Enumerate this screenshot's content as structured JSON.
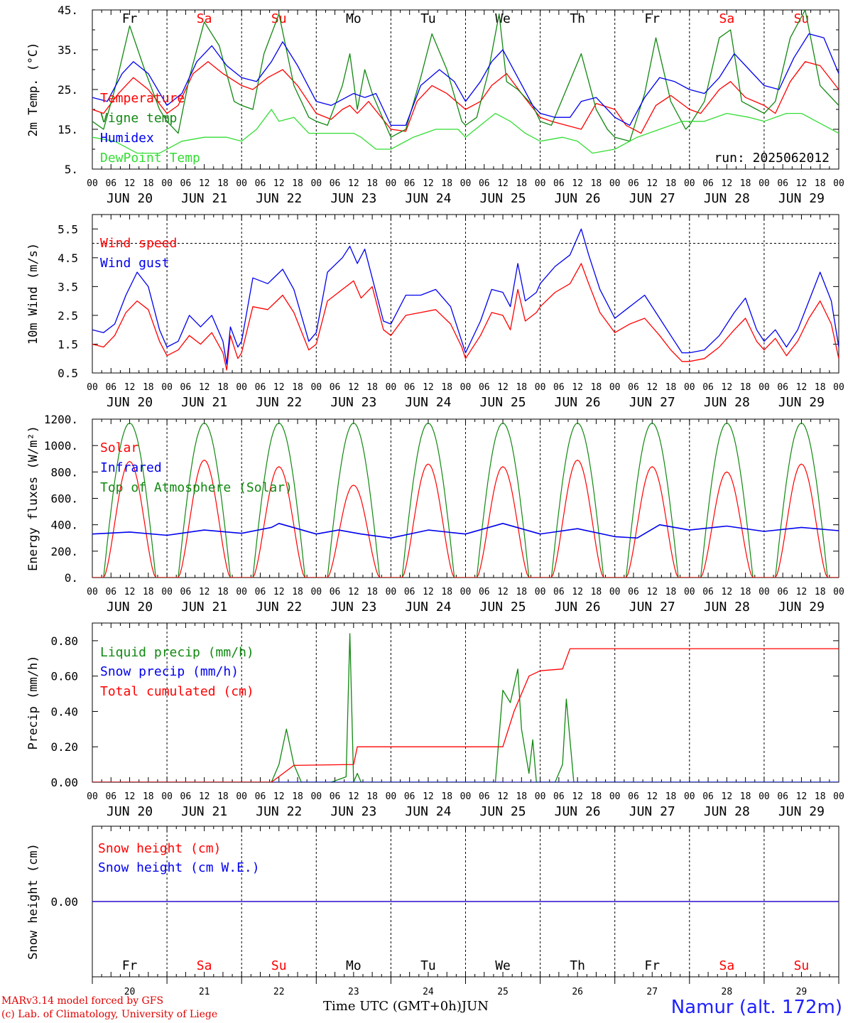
{
  "colors": {
    "red": "#ff0000",
    "green": "#118811",
    "blue": "#0000ee",
    "lightgreen": "#33dd33"
  },
  "hours": [
    "00",
    "06",
    "12",
    "18"
  ],
  "dates": [
    "JUN 20",
    "JUN 21",
    "JUN 22",
    "JUN 23",
    "JUN 24",
    "JUN 25",
    "JUN 26",
    "JUN 27",
    "JUN 28",
    "JUN 29"
  ],
  "weekdays": [
    {
      "label": "Fr",
      "color": "#000000"
    },
    {
      "label": "Sa",
      "color": "#ff0000"
    },
    {
      "label": "Su",
      "color": "#ff0000"
    },
    {
      "label": "Mo",
      "color": "#000000"
    },
    {
      "label": "Tu",
      "color": "#000000"
    },
    {
      "label": "We",
      "color": "#000000"
    },
    {
      "label": "Th",
      "color": "#000000"
    },
    {
      "label": "Fr",
      "color": "#000000"
    },
    {
      "label": "Sa",
      "color": "#ff0000"
    },
    {
      "label": "Su",
      "color": "#ff0000"
    }
  ],
  "bottom_days": [
    "20",
    "21",
    "22",
    "23",
    "24",
    "25",
    "26",
    "27",
    "28",
    "29"
  ],
  "footer": {
    "model": "MARv3.14 model forced by GFS",
    "copyright": "(c) Lab. of Climatology, University of Liege",
    "time_label": "Time UTC (GMT+0h)",
    "month": "JUN",
    "location": "Namur (alt. 172m)"
  },
  "chart_data": [
    {
      "type": "line",
      "ylabel": "2m Temp. (°C)",
      "ylim": [
        5,
        45
      ],
      "yticks": [
        5,
        15,
        25,
        35,
        45
      ],
      "ytick_labels": [
        "5.",
        "15.",
        "25.",
        "35.",
        "45."
      ],
      "run_label": "run: 2025062012",
      "x_unit": "days since JUN 20 00 UTC",
      "series": [
        {
          "name": "Temperature",
          "color": "#ff0000",
          "x": [
            0,
            0.15,
            0.35,
            0.55,
            0.75,
            1.0,
            1.15,
            1.35,
            1.55,
            1.75,
            2.0,
            2.15,
            2.35,
            2.55,
            2.75,
            3.0,
            3.2,
            3.35,
            3.45,
            3.55,
            3.7,
            4.0,
            4.2,
            4.35,
            4.55,
            4.75,
            5.0,
            5.2,
            5.35,
            5.55,
            5.75,
            6.0,
            6.15,
            6.35,
            6.55,
            6.75,
            7.0,
            7.15,
            7.35,
            7.55,
            7.75,
            8.0,
            8.15,
            8.4,
            8.55,
            8.75,
            9.0,
            9.15,
            9.35,
            9.55,
            9.75,
            10.0
          ],
          "values": [
            20,
            19,
            24,
            28,
            25,
            19,
            21,
            29,
            32,
            29,
            26,
            25,
            28,
            30,
            26,
            19,
            17.5,
            20,
            21,
            19,
            22,
            15,
            14.5,
            22,
            26,
            24,
            20,
            22,
            26,
            29,
            24,
            18,
            17,
            16,
            15,
            21.5,
            20,
            16,
            14,
            21,
            23.5,
            20,
            19,
            25,
            27,
            23,
            21,
            19,
            27,
            32,
            31,
            25
          ]
        },
        {
          "name": "Vigne temp",
          "color": "#118811",
          "x": [
            0,
            0.15,
            0.3,
            0.5,
            0.7,
            0.9,
            1.0,
            1.15,
            1.3,
            1.5,
            1.7,
            1.9,
            2.0,
            2.15,
            2.3,
            2.5,
            2.7,
            2.9,
            3.0,
            3.15,
            3.35,
            3.45,
            3.55,
            3.65,
            3.75,
            4.0,
            4.2,
            4.4,
            4.55,
            4.75,
            4.95,
            5.0,
            5.15,
            5.3,
            5.45,
            5.55,
            5.7,
            5.9,
            6.0,
            6.15,
            6.35,
            6.55,
            6.75,
            6.9,
            7.0,
            7.2,
            7.4,
            7.55,
            7.75,
            7.95,
            8.0,
            8.2,
            8.4,
            8.55,
            8.7,
            8.9,
            9.0,
            9.15,
            9.35,
            9.55,
            9.75,
            10.0
          ],
          "values": [
            17,
            15,
            25,
            41,
            30,
            20,
            17,
            14,
            28,
            42,
            36,
            22,
            21,
            20,
            34,
            44,
            26,
            18,
            17,
            16,
            26,
            34,
            20,
            30,
            24,
            13,
            15,
            28,
            39,
            30,
            17,
            16,
            18,
            29,
            44,
            27,
            25,
            21,
            17,
            16,
            25,
            34,
            20,
            15,
            13,
            12,
            24,
            38,
            22,
            15,
            16,
            22,
            38,
            40,
            22,
            20,
            19,
            22,
            38,
            45,
            26,
            21
          ]
        },
        {
          "name": "Humidex",
          "color": "#0000ee",
          "x": [
            0,
            0.2,
            0.4,
            0.55,
            0.75,
            1.0,
            1.2,
            1.4,
            1.6,
            1.8,
            2.0,
            2.2,
            2.4,
            2.55,
            2.75,
            3.0,
            3.2,
            3.4,
            3.5,
            3.65,
            3.8,
            4.0,
            4.2,
            4.4,
            4.65,
            4.85,
            5.0,
            5.2,
            5.35,
            5.5,
            5.7,
            5.9,
            6.0,
            6.2,
            6.4,
            6.55,
            6.75,
            7.0,
            7.2,
            7.4,
            7.6,
            7.8,
            8.0,
            8.2,
            8.4,
            8.6,
            8.8,
            9.0,
            9.2,
            9.4,
            9.6,
            9.8,
            10.0
          ],
          "values": [
            23,
            22,
            29,
            32,
            29,
            21,
            24,
            32,
            36,
            31,
            28,
            27,
            32,
            37,
            31,
            22,
            21,
            23,
            24,
            23,
            24,
            16,
            16,
            26,
            30,
            27,
            22,
            27,
            32,
            35,
            28,
            21,
            19,
            18,
            18,
            22,
            23,
            18,
            16,
            23,
            28,
            27,
            25,
            24,
            28,
            34,
            30,
            26,
            25,
            33,
            39,
            38,
            29
          ]
        },
        {
          "name": "DewPoint Temp",
          "color": "#33dd33",
          "x": [
            0,
            0.3,
            0.6,
            0.9,
            1.2,
            1.5,
            1.8,
            2.0,
            2.2,
            2.4,
            2.5,
            2.7,
            2.9,
            3.0,
            3.3,
            3.5,
            3.6,
            3.8,
            4.0,
            4.3,
            4.6,
            4.9,
            5.0,
            5.2,
            5.4,
            5.6,
            5.8,
            6.0,
            6.3,
            6.5,
            6.7,
            7.0,
            7.3,
            7.6,
            7.9,
            8.2,
            8.5,
            8.8,
            9.0,
            9.3,
            9.5,
            9.7,
            10.0
          ],
          "values": [
            13,
            12,
            9,
            9,
            12,
            13,
            13,
            12,
            15,
            20,
            17,
            18,
            14,
            14,
            14,
            14,
            13,
            10,
            10,
            13,
            15,
            15,
            13,
            16,
            19,
            17,
            14,
            12,
            13,
            12,
            9,
            10,
            13,
            15,
            17,
            17,
            19,
            18,
            17,
            19,
            19,
            17,
            14
          ]
        }
      ]
    },
    {
      "type": "line",
      "ylabel": "10m Wind (m/s)",
      "ylim": [
        0.5,
        6.0
      ],
      "yticks": [
        0.5,
        1.5,
        2.5,
        3.5,
        4.5,
        5.5
      ],
      "ytick_labels": [
        "0.5",
        "1.5",
        "2.5",
        "3.5",
        "4.5",
        "5.5"
      ],
      "reference_line": 5.0,
      "x_unit": "days since JUN 20 00 UTC",
      "series": [
        {
          "name": "Wind speed",
          "color": "#ff0000",
          "x": [
            0,
            0.15,
            0.3,
            0.45,
            0.6,
            0.75,
            0.9,
            1.0,
            1.15,
            1.3,
            1.45,
            1.6,
            1.75,
            1.8,
            1.85,
            1.95,
            2.0,
            2.15,
            2.35,
            2.55,
            2.7,
            2.9,
            3.0,
            3.15,
            3.35,
            3.5,
            3.6,
            3.75,
            3.9,
            4.0,
            4.2,
            4.4,
            4.6,
            4.8,
            4.95,
            5.0,
            5.2,
            5.35,
            5.5,
            5.6,
            5.7,
            5.8,
            5.95,
            6.0,
            6.2,
            6.4,
            6.55,
            6.65,
            6.8,
            7.0,
            7.2,
            7.4,
            7.6,
            7.75,
            7.9,
            8.0,
            8.2,
            8.4,
            8.6,
            8.75,
            8.9,
            9.0,
            9.15,
            9.3,
            9.45,
            9.6,
            9.75,
            9.9,
            10.0
          ],
          "values": [
            1.5,
            1.4,
            1.8,
            2.6,
            3.0,
            2.7,
            1.6,
            1.1,
            1.3,
            1.8,
            1.5,
            1.9,
            1.2,
            0.6,
            1.8,
            1.0,
            1.2,
            2.8,
            2.7,
            3.2,
            2.6,
            1.3,
            1.5,
            3.0,
            3.4,
            3.7,
            3.1,
            3.5,
            2.0,
            1.8,
            2.5,
            2.6,
            2.7,
            2.2,
            1.4,
            1.0,
            1.8,
            2.6,
            2.5,
            2.0,
            3.4,
            2.3,
            2.6,
            2.8,
            3.3,
            3.6,
            4.3,
            3.6,
            2.6,
            1.9,
            2.2,
            2.4,
            1.8,
            1.3,
            0.9,
            0.9,
            1.0,
            1.4,
            2.0,
            2.4,
            1.6,
            1.3,
            1.7,
            1.1,
            1.6,
            2.4,
            3.0,
            2.2,
            1.0
          ]
        },
        {
          "name": "Wind gust",
          "color": "#0000ee",
          "x": [
            0,
            0.15,
            0.3,
            0.45,
            0.6,
            0.75,
            0.9,
            1.0,
            1.15,
            1.3,
            1.45,
            1.6,
            1.75,
            1.8,
            1.85,
            1.95,
            2.0,
            2.15,
            2.35,
            2.55,
            2.7,
            2.9,
            3.0,
            3.15,
            3.35,
            3.45,
            3.55,
            3.65,
            3.75,
            3.9,
            4.0,
            4.2,
            4.4,
            4.6,
            4.8,
            4.95,
            5.0,
            5.2,
            5.35,
            5.5,
            5.6,
            5.7,
            5.8,
            5.95,
            6.0,
            6.2,
            6.4,
            6.55,
            6.65,
            6.8,
            7.0,
            7.2,
            7.4,
            7.6,
            7.75,
            7.9,
            8.0,
            8.2,
            8.4,
            8.6,
            8.75,
            8.9,
            9.0,
            9.15,
            9.3,
            9.45,
            9.6,
            9.75,
            9.9,
            10.0
          ],
          "values": [
            2.0,
            1.9,
            2.2,
            3.2,
            4.0,
            3.5,
            2.0,
            1.4,
            1.6,
            2.5,
            2.1,
            2.5,
            1.6,
            0.8,
            2.1,
            1.4,
            1.6,
            3.8,
            3.6,
            4.1,
            3.4,
            1.6,
            1.9,
            4.0,
            4.5,
            4.9,
            4.3,
            4.8,
            3.8,
            2.3,
            2.2,
            3.2,
            3.2,
            3.4,
            2.8,
            1.6,
            1.2,
            2.3,
            3.4,
            3.3,
            2.8,
            4.3,
            3.0,
            3.3,
            3.6,
            4.2,
            4.6,
            5.5,
            4.6,
            3.4,
            2.4,
            2.8,
            3.2,
            2.4,
            1.8,
            1.2,
            1.2,
            1.3,
            1.8,
            2.6,
            3.1,
            2.0,
            1.6,
            2.0,
            1.4,
            2.0,
            3.0,
            4.0,
            3.0,
            1.4
          ]
        }
      ]
    },
    {
      "type": "line",
      "ylabel": "Energy fluxes (W/m²)",
      "ylim": [
        0,
        1200
      ],
      "yticks": [
        0,
        200,
        400,
        600,
        800,
        1000,
        1200
      ],
      "ytick_labels": [
        "0.",
        "200.",
        "400.",
        "600.",
        "800.",
        "1000.",
        "1200."
      ],
      "x_unit": "days since JUN 20 00 UTC",
      "toa_peak": 1170,
      "sunrise_fraction": 0.15,
      "sunset_fraction": 0.85,
      "solar_peaks": [
        880,
        890,
        840,
        700,
        860,
        840,
        890,
        840,
        800,
        860
      ],
      "series": [
        {
          "name": "Solar",
          "color": "#ff0000"
        },
        {
          "name": "Infrared",
          "color": "#0000ee",
          "x": [
            0,
            0.5,
            1.0,
            1.5,
            2.0,
            2.4,
            2.5,
            3.0,
            3.3,
            3.6,
            4.0,
            4.5,
            5.0,
            5.5,
            6.0,
            6.5,
            7.0,
            7.3,
            7.6,
            8.0,
            8.5,
            9.0,
            9.5,
            10.0
          ],
          "values": [
            330,
            345,
            320,
            360,
            335,
            380,
            410,
            330,
            360,
            330,
            300,
            360,
            330,
            410,
            330,
            370,
            310,
            300,
            400,
            360,
            390,
            350,
            380,
            355
          ]
        },
        {
          "name": "Top of Atmosphere (Solar)",
          "color": "#118811"
        }
      ]
    },
    {
      "type": "line",
      "ylabel": "Precip (mm/h)",
      "ylim": [
        0,
        0.9
      ],
      "yticks": [
        0,
        0.2,
        0.4,
        0.6,
        0.8
      ],
      "ytick_labels": [
        "0.00",
        "0.20",
        "0.40",
        "0.60",
        "0.80"
      ],
      "x_unit": "days since JUN 20 00 UTC",
      "series": [
        {
          "name": "Liquid precip (mm/h)",
          "color": "#118811",
          "x": [
            0,
            2.4,
            2.5,
            2.6,
            2.7,
            2.8,
            3.2,
            3.4,
            3.45,
            3.5,
            3.55,
            3.6,
            5.4,
            5.5,
            5.6,
            5.7,
            5.75,
            5.85,
            5.9,
            5.95,
            6.0,
            6.2,
            6.3,
            6.35,
            6.45,
            6.55,
            10.0
          ],
          "values": [
            0,
            0,
            0.1,
            0.3,
            0.1,
            0,
            0,
            0.03,
            0.84,
            0,
            0.05,
            0,
            0,
            0.52,
            0.45,
            0.64,
            0.3,
            0.05,
            0.24,
            0,
            0,
            0,
            0.1,
            0.47,
            0,
            0,
            0
          ]
        },
        {
          "name": "Snow precip (mm/h)",
          "color": "#0000ee",
          "x": [
            0,
            10
          ],
          "values": [
            0,
            0
          ]
        },
        {
          "name": "Total cumulated (cm)",
          "color": "#ff0000",
          "x": [
            0,
            2.4,
            2.7,
            3.5,
            3.55,
            5.5,
            5.65,
            5.85,
            6.0,
            6.3,
            6.4,
            10.0
          ],
          "values": [
            0,
            0,
            0.095,
            0.1,
            0.2,
            0.2,
            0.4,
            0.6,
            0.63,
            0.64,
            0.755,
            0.755
          ]
        }
      ]
    },
    {
      "type": "line",
      "ylabel": "Snow height (cm)",
      "ylim": [
        -0.01,
        0.01
      ],
      "yticks": [
        0
      ],
      "ytick_labels": [
        "0.00"
      ],
      "x_unit": "days since JUN 20 00 UTC",
      "series": [
        {
          "name": "Snow height (cm)",
          "color": "#ff0000",
          "x": [
            0,
            10
          ],
          "values": [
            0,
            0
          ]
        },
        {
          "name": "Snow height (cm W.E.)",
          "color": "#0000ee",
          "x": [
            0,
            10
          ],
          "values": [
            0,
            0
          ]
        }
      ]
    }
  ]
}
